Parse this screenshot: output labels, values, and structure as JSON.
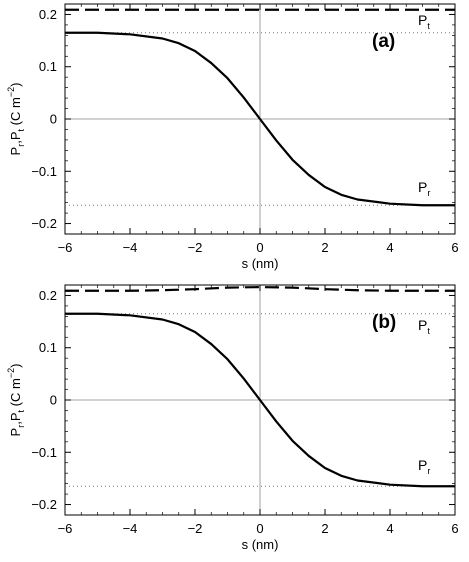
{
  "chart_data": [
    {
      "type": "line",
      "panel_label": "(a)",
      "xlabel": "s (nm)",
      "ylabel": {
        "base": "P",
        "sub1": "r",
        "sep": ",P",
        "sub2": "t",
        "open": " (C m",
        "sup": "−2",
        "close": ")"
      },
      "xlim": [
        -6,
        6
      ],
      "ylim": [
        -0.22,
        0.22
      ],
      "xticks": [
        -6,
        -4,
        -2,
        0,
        2,
        4,
        6
      ],
      "xtick_labels": [
        "−6",
        "−4",
        "−2",
        "0",
        "2",
        "4",
        "6"
      ],
      "yticks": [
        -0.2,
        -0.1,
        0,
        0.1,
        0.2
      ],
      "ytick_labels": [
        "−0.2",
        "−0.1",
        "0",
        "0.1",
        "0.2"
      ],
      "reference_lines": {
        "dotted_y": [
          0.165,
          -0.165
        ],
        "zero_x": 0,
        "zero_y": 0
      },
      "series": [
        {
          "label": {
            "base": "P",
            "sub": "t"
          },
          "style": "dashed",
          "x": [
            -6,
            -4,
            -2,
            0,
            2,
            4,
            6
          ],
          "y": [
            0.209,
            0.209,
            0.209,
            0.209,
            0.209,
            0.209,
            0.209
          ]
        },
        {
          "label": {
            "base": "P",
            "sub": "r"
          },
          "style": "solid",
          "x": [
            -6,
            -5,
            -4,
            -3,
            -2.5,
            -2,
            -1.5,
            -1,
            -0.5,
            0,
            0.5,
            1,
            1.5,
            2,
            2.5,
            3,
            4,
            5,
            6
          ],
          "y": [
            0.165,
            0.165,
            0.162,
            0.154,
            0.145,
            0.13,
            0.107,
            0.078,
            0.041,
            0,
            -0.041,
            -0.078,
            -0.107,
            -0.13,
            -0.145,
            -0.154,
            -0.162,
            -0.165,
            -0.165
          ]
        }
      ]
    },
    {
      "type": "line",
      "panel_label": "(b)",
      "xlabel": "s (nm)",
      "ylabel": {
        "base": "P",
        "sub1": "r",
        "sep": ",P",
        "sub2": "t",
        "open": " (C m",
        "sup": "−2",
        "close": ")"
      },
      "xlim": [
        -6,
        6
      ],
      "ylim": [
        -0.22,
        0.22
      ],
      "xticks": [
        -6,
        -4,
        -2,
        0,
        2,
        4,
        6
      ],
      "xtick_labels": [
        "−6",
        "−4",
        "−2",
        "0",
        "2",
        "4",
        "6"
      ],
      "yticks": [
        -0.2,
        -0.1,
        0,
        0.1,
        0.2
      ],
      "ytick_labels": [
        "−0.2",
        "−0.1",
        "0",
        "0.1",
        "0.2"
      ],
      "reference_lines": {
        "dotted_y": [
          0.165,
          -0.165
        ],
        "zero_x": 0,
        "zero_y": 0
      },
      "series": [
        {
          "label": {
            "base": "P",
            "sub": "t"
          },
          "style": "dashed",
          "x": [
            -6,
            -4,
            -3,
            -2,
            -1,
            0,
            1,
            2,
            3,
            4,
            6
          ],
          "y": [
            0.209,
            0.209,
            0.21,
            0.212,
            0.215,
            0.216,
            0.215,
            0.212,
            0.21,
            0.209,
            0.209
          ]
        },
        {
          "label": {
            "base": "P",
            "sub": "r"
          },
          "style": "solid",
          "x": [
            -6,
            -5,
            -4,
            -3,
            -2.5,
            -2,
            -1.5,
            -1,
            -0.5,
            0,
            0.5,
            1,
            1.5,
            2,
            2.5,
            3,
            4,
            5,
            6
          ],
          "y": [
            0.165,
            0.165,
            0.162,
            0.154,
            0.145,
            0.13,
            0.107,
            0.078,
            0.041,
            0,
            -0.041,
            -0.078,
            -0.107,
            -0.13,
            -0.145,
            -0.154,
            -0.162,
            -0.165,
            -0.165
          ]
        }
      ]
    }
  ]
}
